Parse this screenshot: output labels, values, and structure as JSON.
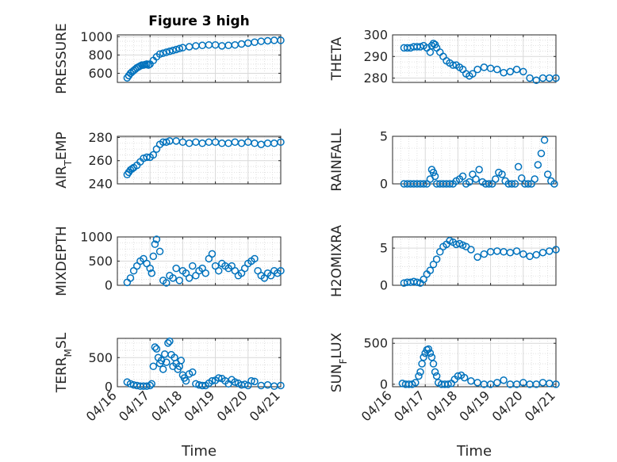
{
  "chart_data": [
    {
      "type": "scatter",
      "title": "Figure 3 high",
      "ylabel": "PRESSURE",
      "ylim": [
        500,
        1020
      ],
      "yticks": [
        "600",
        "800",
        "1000"
      ],
      "x": [
        0.3,
        0.35,
        0.4,
        0.45,
        0.5,
        0.55,
        0.6,
        0.65,
        0.7,
        0.75,
        0.8,
        0.85,
        0.9,
        0.95,
        1.0,
        1.1,
        1.2,
        1.3,
        1.4,
        1.5,
        1.6,
        1.7,
        1.8,
        1.9,
        2.0,
        2.2,
        2.4,
        2.6,
        2.8,
        3.0,
        3.2,
        3.4,
        3.6,
        3.8,
        4.0,
        4.2,
        4.4,
        4.6,
        4.8,
        5.0
      ],
      "y": [
        550,
        575,
        600,
        615,
        630,
        645,
        660,
        670,
        680,
        690,
        690,
        695,
        700,
        690,
        700,
        740,
        780,
        810,
        820,
        830,
        840,
        850,
        860,
        870,
        880,
        890,
        900,
        905,
        910,
        910,
        900,
        905,
        910,
        920,
        930,
        940,
        950,
        955,
        960,
        960
      ]
    },
    {
      "type": "scatter",
      "ylabel": "THETA",
      "ylim": [
        278,
        300
      ],
      "yticks": [
        "280",
        "290",
        "300"
      ],
      "x": [
        0.35,
        0.45,
        0.55,
        0.65,
        0.75,
        0.85,
        0.95,
        1.05,
        1.15,
        1.2,
        1.25,
        1.3,
        1.35,
        1.45,
        1.55,
        1.65,
        1.75,
        1.85,
        1.95,
        2.05,
        2.15,
        2.25,
        2.35,
        2.45,
        2.6,
        2.8,
        3.0,
        3.2,
        3.4,
        3.6,
        3.8,
        4.0,
        4.2,
        4.4,
        4.6,
        4.8,
        5.0
      ],
      "y": [
        294,
        294,
        294,
        294.5,
        294.5,
        294.5,
        295,
        294,
        292,
        295,
        296,
        295.5,
        294,
        292,
        290,
        288,
        287,
        286,
        286,
        285,
        284,
        282,
        281,
        282,
        284,
        285,
        284.5,
        284,
        282.5,
        283,
        284,
        283,
        280,
        279,
        280,
        280,
        280
      ]
    },
    {
      "type": "scatter",
      "ylabel": "AIR_TEMP",
      "ylim": [
        240,
        281
      ],
      "yticks": [
        "240",
        "260",
        "280"
      ],
      "x": [
        0.3,
        0.35,
        0.4,
        0.45,
        0.5,
        0.6,
        0.7,
        0.8,
        0.9,
        1.0,
        1.1,
        1.2,
        1.3,
        1.4,
        1.5,
        1.6,
        1.8,
        2.0,
        2.2,
        2.4,
        2.6,
        2.8,
        3.0,
        3.2,
        3.4,
        3.6,
        3.8,
        4.0,
        4.2,
        4.4,
        4.6,
        4.8,
        5.0
      ],
      "y": [
        248,
        250,
        252,
        253,
        254,
        256,
        259,
        262,
        263,
        263,
        265,
        270,
        274,
        276,
        276,
        277,
        277,
        276,
        275,
        276,
        275,
        276,
        276,
        275,
        275,
        276,
        275,
        276,
        275,
        274,
        275,
        275,
        276
      ]
    },
    {
      "type": "scatter",
      "ylabel": "RAINFALL",
      "ylim": [
        0,
        5
      ],
      "yticks": [
        "0",
        "5"
      ],
      "x": [
        0.35,
        0.45,
        0.55,
        0.65,
        0.75,
        0.85,
        0.95,
        1.05,
        1.15,
        1.2,
        1.25,
        1.3,
        1.35,
        1.45,
        1.55,
        1.65,
        1.75,
        1.85,
        1.95,
        2.05,
        2.15,
        2.25,
        2.35,
        2.45,
        2.55,
        2.65,
        2.75,
        2.85,
        2.95,
        3.05,
        3.15,
        3.25,
        3.35,
        3.45,
        3.55,
        3.65,
        3.75,
        3.85,
        3.95,
        4.05,
        4.15,
        4.25,
        4.35,
        4.45,
        4.55,
        4.65,
        4.75,
        4.85,
        4.95
      ],
      "y": [
        0,
        0,
        0,
        0,
        0,
        0,
        0,
        0,
        0.5,
        1.5,
        1.2,
        0.8,
        0,
        0,
        0,
        0,
        0,
        0,
        0.3,
        0.5,
        0.8,
        0,
        0.2,
        1.0,
        0.5,
        1.5,
        0.2,
        0,
        0,
        0,
        0.5,
        1.2,
        1.0,
        0.3,
        0,
        0,
        0,
        1.8,
        0.6,
        0,
        0,
        0,
        0.5,
        2.0,
        3.2,
        4.6,
        1.0,
        0.3,
        0
      ]
    },
    {
      "type": "scatter",
      "ylabel": "MIXDEPTH",
      "ylim": [
        0,
        1000
      ],
      "yticks": [
        "0",
        "500",
        "1000"
      ],
      "x": [
        0.3,
        0.4,
        0.5,
        0.6,
        0.7,
        0.8,
        0.9,
        1.0,
        1.05,
        1.1,
        1.15,
        1.2,
        1.3,
        1.4,
        1.5,
        1.6,
        1.7,
        1.8,
        1.9,
        2.0,
        2.1,
        2.2,
        2.3,
        2.4,
        2.5,
        2.6,
        2.7,
        2.8,
        2.9,
        3.0,
        3.1,
        3.2,
        3.3,
        3.4,
        3.5,
        3.6,
        3.7,
        3.8,
        3.9,
        4.0,
        4.1,
        4.2,
        4.3,
        4.4,
        4.5,
        4.6,
        4.7,
        4.8,
        4.9,
        5.0
      ],
      "y": [
        60,
        150,
        300,
        400,
        500,
        550,
        450,
        350,
        250,
        600,
        850,
        950,
        700,
        100,
        50,
        200,
        150,
        350,
        100,
        300,
        250,
        150,
        400,
        200,
        300,
        350,
        250,
        550,
        650,
        400,
        300,
        450,
        400,
        350,
        400,
        300,
        200,
        250,
        350,
        450,
        500,
        550,
        300,
        200,
        150,
        250,
        200,
        300,
        250,
        300
      ]
    },
    {
      "type": "scatter",
      "ylabel": "H2OMIXRA",
      "ylim": [
        0,
        6.5
      ],
      "yticks": [
        "0",
        "5"
      ],
      "x": [
        0.35,
        0.45,
        0.55,
        0.65,
        0.75,
        0.85,
        0.95,
        1.05,
        1.15,
        1.25,
        1.35,
        1.45,
        1.55,
        1.65,
        1.75,
        1.85,
        1.95,
        2.05,
        2.15,
        2.25,
        2.4,
        2.6,
        2.8,
        3.0,
        3.2,
        3.4,
        3.6,
        3.8,
        4.0,
        4.2,
        4.4,
        4.6,
        4.8,
        5.0
      ],
      "y": [
        0.3,
        0.4,
        0.4,
        0.5,
        0.4,
        0.3,
        0.8,
        1.5,
        2.0,
        2.8,
        3.5,
        4.5,
        5.2,
        5.5,
        6.0,
        5.8,
        5.5,
        5.6,
        5.4,
        5.2,
        4.8,
        3.8,
        4.2,
        4.5,
        4.6,
        4.5,
        4.4,
        4.6,
        4.2,
        3.9,
        4.1,
        4.4,
        4.6,
        4.8
      ]
    },
    {
      "type": "scatter",
      "ylabel": "TERR_MSL",
      "ylim": [
        0,
        830
      ],
      "yticks": [
        "0",
        "500"
      ],
      "xlabel": "Time",
      "xticks": [
        "04/16",
        "04/17",
        "04/18",
        "04/19",
        "04/20",
        "04/21"
      ],
      "x": [
        0.3,
        0.4,
        0.5,
        0.6,
        0.7,
        0.8,
        0.9,
        1.0,
        1.05,
        1.1,
        1.15,
        1.2,
        1.25,
        1.3,
        1.35,
        1.4,
        1.45,
        1.5,
        1.55,
        1.6,
        1.65,
        1.7,
        1.75,
        1.8,
        1.85,
        1.9,
        1.95,
        2.0,
        2.05,
        2.1,
        2.2,
        2.3,
        2.4,
        2.5,
        2.6,
        2.7,
        2.8,
        2.9,
        3.0,
        3.1,
        3.2,
        3.3,
        3.4,
        3.5,
        3.6,
        3.7,
        3.8,
        3.9,
        4.0,
        4.1,
        4.2,
        4.4,
        4.6,
        4.8,
        5.0
      ],
      "y": [
        80,
        50,
        30,
        20,
        10,
        10,
        10,
        20,
        50,
        350,
        680,
        650,
        500,
        400,
        450,
        300,
        560,
        420,
        750,
        780,
        550,
        350,
        500,
        400,
        300,
        350,
        450,
        200,
        150,
        100,
        220,
        250,
        50,
        30,
        20,
        20,
        60,
        100,
        110,
        150,
        140,
        100,
        50,
        120,
        80,
        60,
        30,
        40,
        20,
        100,
        90,
        20,
        30,
        10,
        20
      ]
    },
    {
      "type": "scatter",
      "ylabel": "SUN_FLUX",
      "ylim": [
        -30,
        560
      ],
      "yticks": [
        "0",
        "500"
      ],
      "xlabel": "Time",
      "xticks": [
        "04/16",
        "04/17",
        "04/18",
        "04/19",
        "04/20",
        "04/21"
      ],
      "x": [
        0.3,
        0.4,
        0.5,
        0.6,
        0.7,
        0.8,
        0.85,
        0.9,
        0.95,
        1.0,
        1.05,
        1.1,
        1.15,
        1.2,
        1.25,
        1.3,
        1.35,
        1.4,
        1.5,
        1.6,
        1.7,
        1.8,
        1.9,
        2.0,
        2.1,
        2.2,
        2.4,
        2.6,
        2.8,
        3.0,
        3.2,
        3.4,
        3.6,
        3.8,
        4.0,
        4.2,
        4.4,
        4.6,
        4.8,
        5.0
      ],
      "y": [
        10,
        0,
        0,
        0,
        20,
        100,
        150,
        250,
        330,
        380,
        420,
        430,
        380,
        330,
        250,
        150,
        100,
        20,
        0,
        0,
        0,
        10,
        60,
        100,
        110,
        80,
        40,
        20,
        0,
        0,
        20,
        50,
        0,
        0,
        20,
        0,
        0,
        20,
        10,
        0
      ]
    }
  ]
}
